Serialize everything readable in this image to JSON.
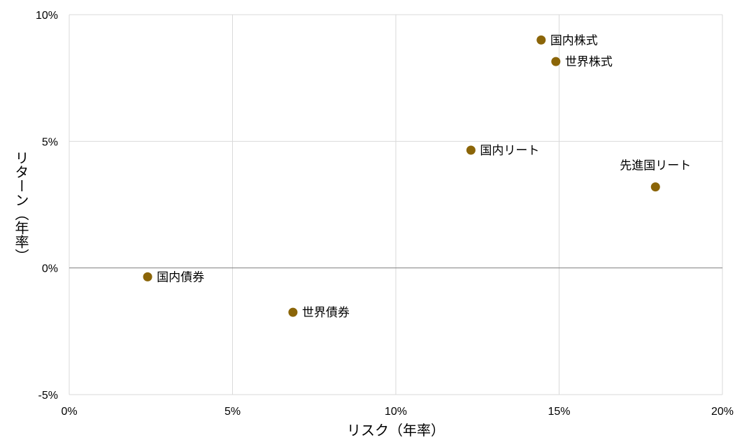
{
  "chart_data": {
    "type": "scatter",
    "xlabel": "リスク（年率）",
    "ylabel": "リターン（年率）",
    "xlim": [
      0,
      20
    ],
    "ylim": [
      -5,
      10
    ],
    "x_ticks": [
      0,
      5,
      10,
      15,
      20
    ],
    "y_ticks": [
      -5,
      0,
      5,
      10
    ],
    "x_tick_labels": [
      "0%",
      "5%",
      "10%",
      "15%",
      "20%"
    ],
    "y_tick_labels": [
      "-5%",
      "0%",
      "5%",
      "10%"
    ],
    "grid": true,
    "marker_color": "#8B6508",
    "points": [
      {
        "label": "国内株式",
        "x": 14.45,
        "y": 9.0
      },
      {
        "label": "世界株式",
        "x": 14.9,
        "y": 8.15
      },
      {
        "label": "国内リート",
        "x": 12.3,
        "y": 4.65
      },
      {
        "label": "先進国リート",
        "x": 17.95,
        "y": 3.2
      },
      {
        "label": "国内債券",
        "x": 2.4,
        "y": -0.35
      },
      {
        "label": "世界債券",
        "x": 6.85,
        "y": -1.75
      }
    ]
  }
}
